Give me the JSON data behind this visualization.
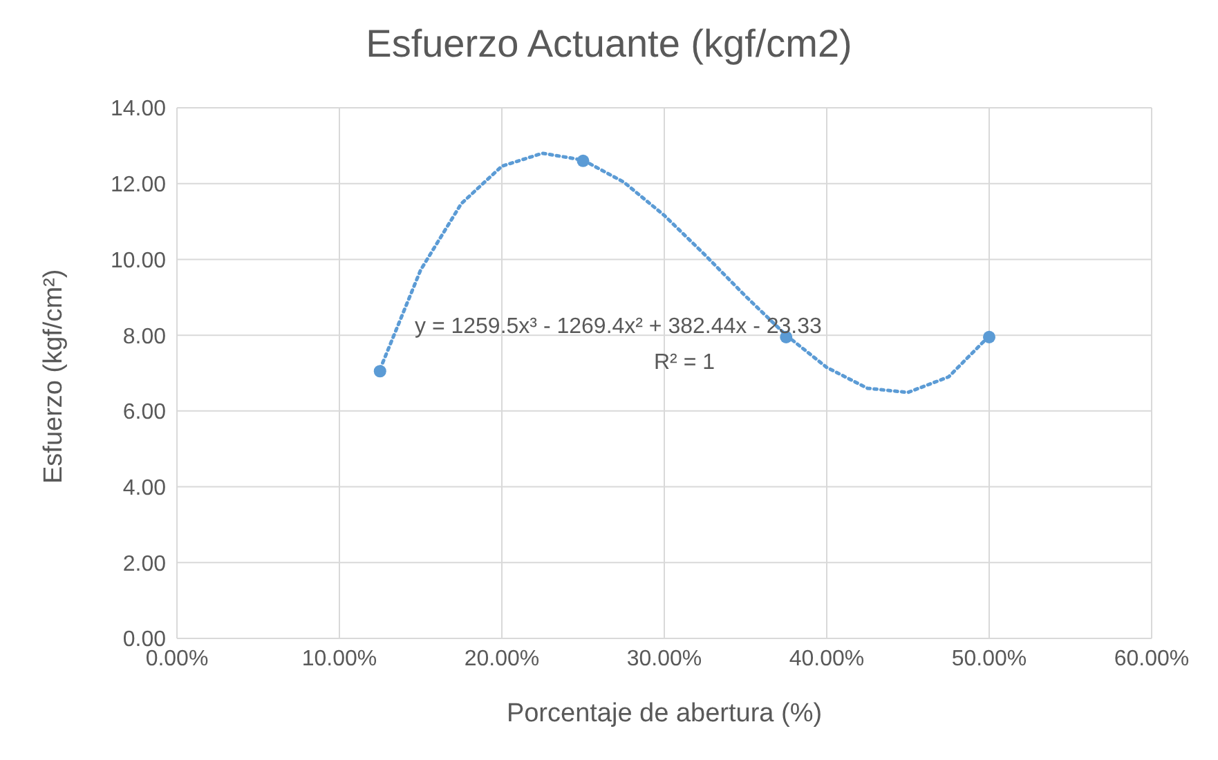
{
  "chart_data": {
    "type": "scatter",
    "title": "Esfuerzo Actuante (kgf/cm2)",
    "xlabel": "Porcentaje de abertura (%)",
    "ylabel": "Esfuerzo (kgf/cm²)",
    "x": [
      0.125,
      0.25,
      0.375,
      0.5
    ],
    "series": [
      {
        "color": "#5b9bd5",
        "marker": "circle",
        "values": [
          7.05,
          12.6,
          7.95,
          7.95
        ]
      },
      {
        "type": "line",
        "color": "#5b9bd5",
        "marker": "none",
        "line_style": "dotted",
        "x": [
          0.125,
          0.15,
          0.175,
          0.2,
          0.225,
          0.25,
          0.275,
          0.3,
          0.325,
          0.35,
          0.375,
          0.4,
          0.425,
          0.45,
          0.475,
          0.5
        ],
        "values": [
          7.1,
          9.72,
          11.47,
          12.46,
          12.8,
          12.62,
          12.04,
          11.16,
          10.12,
          9.03,
          8.0,
          7.15,
          6.6,
          6.49,
          6.9,
          7.98
        ]
      }
    ],
    "annotations": [
      "y = 1259.5x³ - 1269.4x² + 382.44x - 23.33",
      "R² = 1"
    ],
    "xlim": [
      0,
      0.6
    ],
    "xticks": [
      {
        "value": 0,
        "label": "0.00%"
      },
      {
        "value": 0.1,
        "label": "10.00%"
      },
      {
        "value": 0.2,
        "label": "20.00%"
      },
      {
        "value": 0.3,
        "label": "30.00%"
      },
      {
        "value": 0.4,
        "label": "40.00%"
      },
      {
        "value": 0.5,
        "label": "50.00%"
      },
      {
        "value": 0.6,
        "label": "60.00%"
      }
    ],
    "ylim": [
      0,
      14
    ],
    "yticks": [
      {
        "value": 0,
        "label": "0.00"
      },
      {
        "value": 2,
        "label": "2.00"
      },
      {
        "value": 4,
        "label": "4.00"
      },
      {
        "value": 6,
        "label": "6.00"
      },
      {
        "value": 8,
        "label": "8.00"
      },
      {
        "value": 10,
        "label": "10.00"
      },
      {
        "value": 12,
        "label": "12.00"
      },
      {
        "value": 14,
        "label": "14.00"
      }
    ],
    "grid": true,
    "legend": false
  }
}
